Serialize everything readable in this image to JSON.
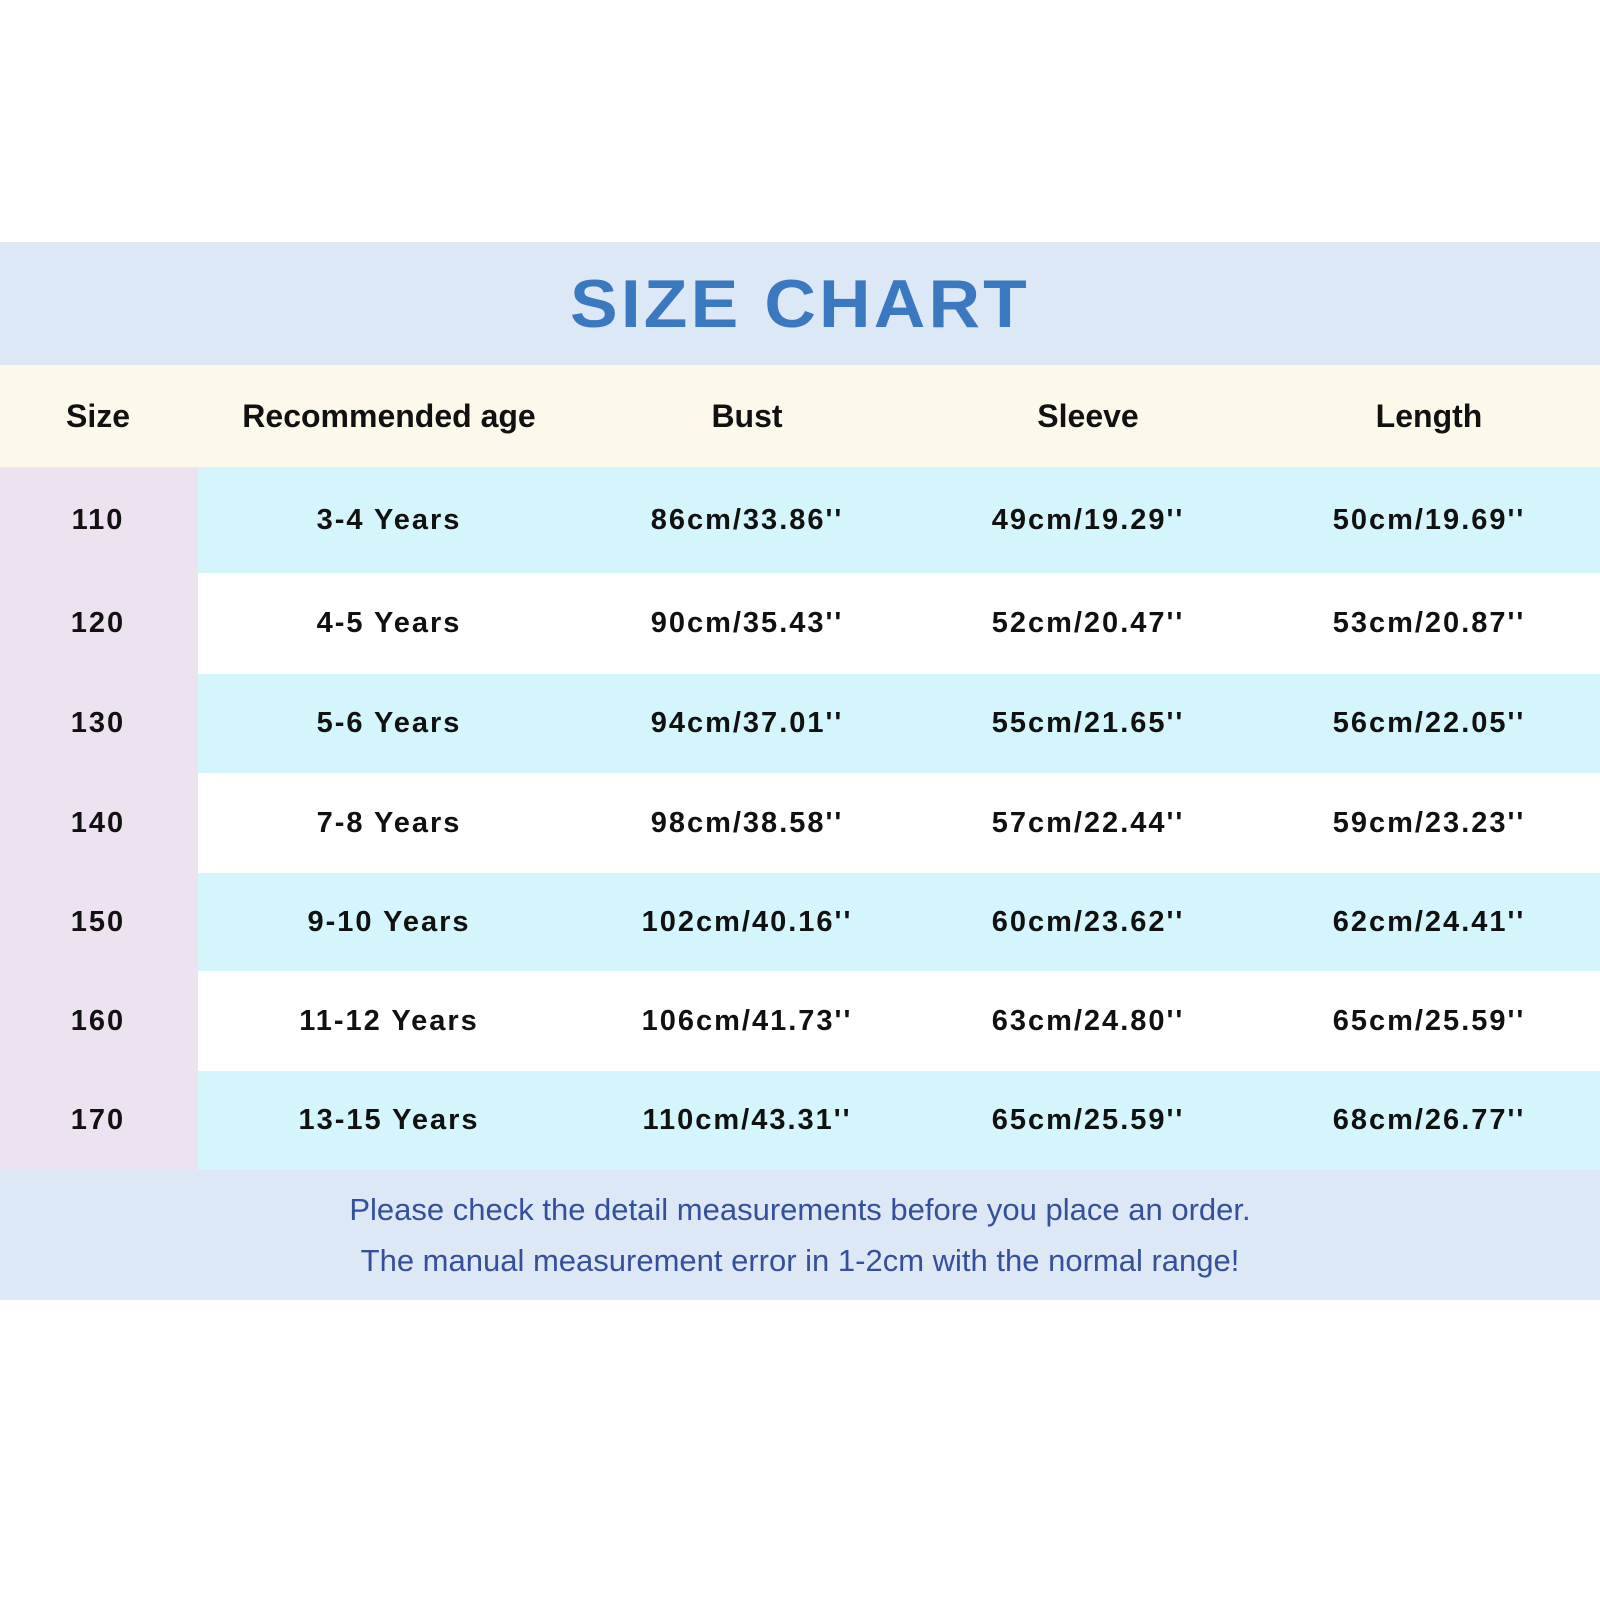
{
  "title": "SIZE CHART",
  "colors": {
    "title": "#3a78c0",
    "title_band": "#dde8f6",
    "header_band": "#fdf9ea",
    "size_column": "#ede2f0",
    "row_alt": "#d5f5fc",
    "footer_text": "#34509a"
  },
  "table": {
    "headers": [
      "Size",
      "Recommended age",
      "Bust",
      "Sleeve",
      "Length"
    ],
    "rows": [
      [
        "110",
        "3-4 Years",
        "86cm/33.86''",
        "49cm/19.29''",
        "50cm/19.69''"
      ],
      [
        "120",
        "4-5 Years",
        "90cm/35.43''",
        "52cm/20.47''",
        "53cm/20.87''"
      ],
      [
        "130",
        "5-6 Years",
        "94cm/37.01''",
        "55cm/21.65''",
        "56cm/22.05''"
      ],
      [
        "140",
        "7-8 Years",
        "98cm/38.58''",
        "57cm/22.44''",
        "59cm/23.23''"
      ],
      [
        "150",
        "9-10 Years",
        "102cm/40.16''",
        "60cm/23.62''",
        "62cm/24.41''"
      ],
      [
        "160",
        "11-12 Years",
        "106cm/41.73''",
        "63cm/24.80''",
        "65cm/25.59''"
      ],
      [
        "170",
        "13-15 Years",
        "110cm/43.31''",
        "65cm/25.59''",
        "68cm/26.77''"
      ]
    ]
  },
  "footer": {
    "line1": "Please check the detail measurements before you place an order.",
    "line2": "The manual measurement error in 1-2cm with the normal range!"
  }
}
